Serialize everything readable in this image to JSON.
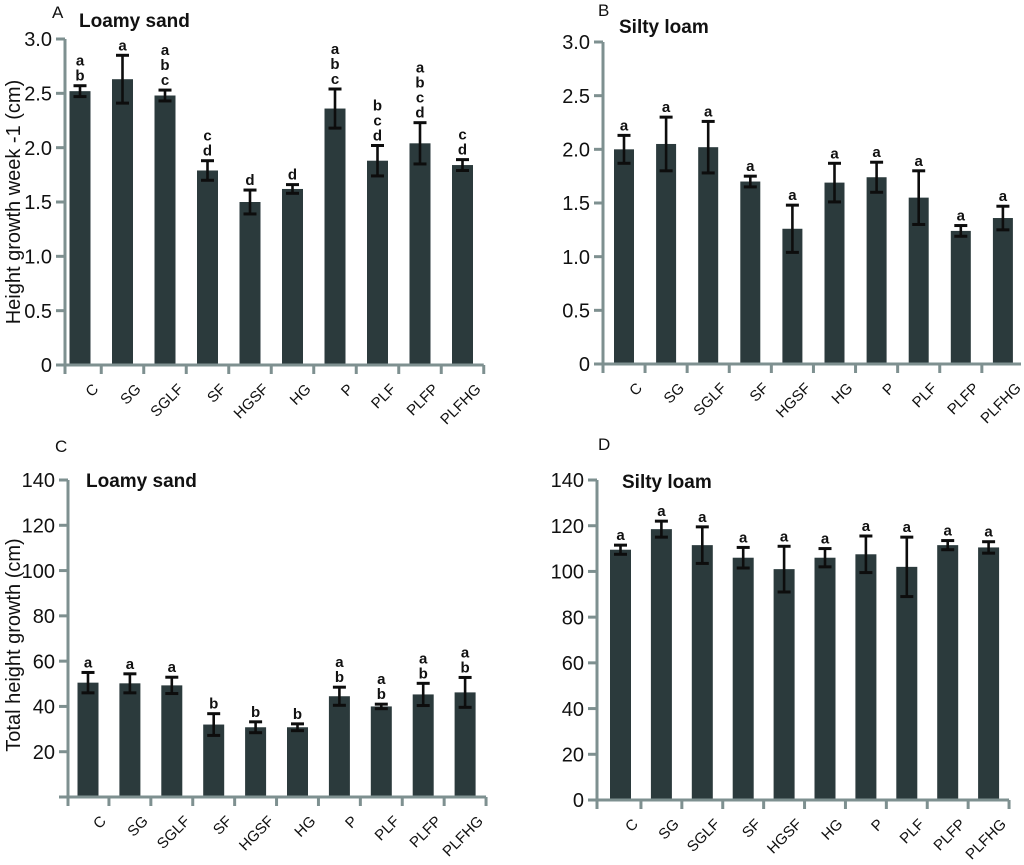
{
  "figure": {
    "background": "#ffffff",
    "bar_color": "#2b3a3c",
    "axis_color": "#7e9090",
    "error_color": "#0d0d0d",
    "text_color": "#111111"
  },
  "chart_data": [
    {
      "id": "A",
      "type": "bar",
      "panel_label": "A",
      "title": "Loamy sand",
      "ylabel": "Height growth week -1 (cm)",
      "ylim": [
        0,
        3.0
      ],
      "yticks": [
        0,
        0.5,
        1.0,
        1.5,
        2.0,
        2.5,
        3.0
      ],
      "ytick_labels": [
        "0",
        "0.5",
        "1.0",
        "1.5",
        "2.0",
        "2.5",
        "3.0"
      ],
      "grid": false,
      "categories": [
        "C",
        "SG",
        "SGLF",
        "SF",
        "HGSF",
        "HG",
        "P",
        "PLF",
        "PLFP",
        "PLFHG"
      ],
      "values": [
        2.52,
        2.63,
        2.48,
        1.79,
        1.5,
        1.62,
        2.36,
        1.88,
        2.04,
        1.84
      ],
      "errors": [
        0.05,
        0.22,
        0.05,
        0.09,
        0.11,
        0.04,
        0.18,
        0.14,
        0.19,
        0.05
      ],
      "sig_letters": [
        [
          "a",
          "b"
        ],
        [
          "a"
        ],
        [
          "a",
          "b",
          "c"
        ],
        [
          "c",
          "d"
        ],
        [
          "d"
        ],
        [
          "d"
        ],
        [
          "a",
          "b",
          "c"
        ],
        [
          "b",
          "c",
          "d"
        ],
        [
          "a",
          "b",
          "c",
          "d"
        ],
        [
          "c",
          "d"
        ]
      ]
    },
    {
      "id": "B",
      "type": "bar",
      "panel_label": "B",
      "title": "Silty loam",
      "ylabel": null,
      "ylim": [
        0,
        3.0
      ],
      "yticks": [
        0,
        0.5,
        1.0,
        1.5,
        2.0,
        2.5,
        3.0
      ],
      "ytick_labels": [
        "0",
        "0.5",
        "1.0",
        "1.5",
        "2.0",
        "2.5",
        "3.0"
      ],
      "grid": false,
      "categories": [
        "C",
        "SG",
        "SGLF",
        "SF",
        "HGSF",
        "HG",
        "P",
        "PLF",
        "PLFP",
        "PLFHG"
      ],
      "values": [
        2.0,
        2.05,
        2.02,
        1.7,
        1.26,
        1.69,
        1.74,
        1.55,
        1.24,
        1.36
      ],
      "errors": [
        0.13,
        0.25,
        0.24,
        0.05,
        0.22,
        0.18,
        0.14,
        0.25,
        0.05,
        0.11
      ],
      "sig_letters": [
        [
          "a"
        ],
        [
          "a"
        ],
        [
          "a"
        ],
        [
          "a"
        ],
        [
          "a"
        ],
        [
          "a"
        ],
        [
          "a"
        ],
        [
          "a"
        ],
        [
          "a"
        ],
        [
          "a"
        ]
      ]
    },
    {
      "id": "C",
      "type": "bar",
      "panel_label": "C",
      "title": "Loamy sand",
      "ylabel": "Total height growth (cm)",
      "ylim": [
        0,
        140
      ],
      "yticks": [
        0,
        20,
        40,
        60,
        80,
        100,
        120,
        140
      ],
      "ytick_labels": [
        "",
        "20",
        "40",
        "60",
        "80",
        "100",
        "120",
        "140"
      ],
      "grid": false,
      "categories": [
        "C",
        "SG",
        "SGLF",
        "SF",
        "HGSF",
        "HG",
        "P",
        "PLF",
        "PLFP",
        "PLFHG"
      ],
      "values": [
        50.5,
        50.2,
        49.3,
        32.0,
        30.8,
        30.8,
        44.5,
        40.0,
        45.3,
        46.2
      ],
      "errors": [
        4.5,
        4.2,
        3.6,
        4.8,
        2.4,
        1.5,
        4.0,
        1.0,
        4.9,
        6.6
      ],
      "sig_letters": [
        [
          "a"
        ],
        [
          "a"
        ],
        [
          "a"
        ],
        [
          "b"
        ],
        [
          "b"
        ],
        [
          "b"
        ],
        [
          "a",
          "b"
        ],
        [
          "a",
          "b"
        ],
        [
          "a",
          "b"
        ],
        [
          "a",
          "b"
        ]
      ]
    },
    {
      "id": "D",
      "type": "bar",
      "panel_label": "D",
      "title": "Silty loam",
      "ylabel": null,
      "ylim": [
        0,
        140
      ],
      "yticks": [
        0,
        20,
        40,
        60,
        80,
        100,
        120,
        140
      ],
      "ytick_labels": [
        "0",
        "20",
        "40",
        "60",
        "80",
        "100",
        "120",
        "140"
      ],
      "grid": false,
      "categories": [
        "C",
        "SG",
        "SGLF",
        "SF",
        "HGSF",
        "HG",
        "P",
        "PLF",
        "PLFP",
        "PLFHG"
      ],
      "values": [
        109.5,
        118.5,
        111.5,
        106.0,
        101.0,
        106.0,
        107.5,
        102.0,
        111.5,
        110.5
      ],
      "errors": [
        2.0,
        3.5,
        8.0,
        4.5,
        10.0,
        4.0,
        8.0,
        13.0,
        2.0,
        2.5
      ],
      "sig_letters": [
        [
          "a"
        ],
        [
          "a"
        ],
        [
          "a"
        ],
        [
          "a"
        ],
        [
          "a"
        ],
        [
          "a"
        ],
        [
          "a"
        ],
        [
          "a"
        ],
        [
          "a"
        ],
        [
          "a"
        ]
      ]
    }
  ]
}
